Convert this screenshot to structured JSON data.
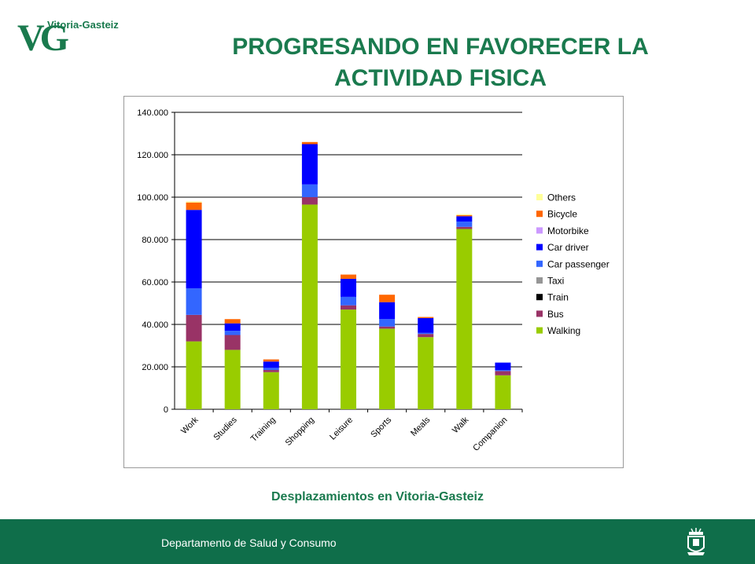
{
  "header": {
    "logo_text": "Vitoria-Gasteiz",
    "logo_monogram": "VG",
    "title_line1": "PROGRESANDO EN FAVORECER LA",
    "title_line2": "ACTIVIDAD FISICA"
  },
  "caption": "Desplazamientos en Vitoria-Gasteiz",
  "footer": {
    "department": "Departamento de Salud y Consumo",
    "crest_icon": "city-crest-icon"
  },
  "colors": {
    "brand_green": "#1a7a4e",
    "footer_green": "#0f6e4a"
  },
  "chart_data": {
    "type": "bar",
    "stacked": true,
    "categories": [
      "Work",
      "Studies",
      "Training",
      "Shopping",
      "Leisure",
      "Sports",
      "Meals",
      "Walk",
      "Companion"
    ],
    "ylim": [
      0,
      140000
    ],
    "yticks": [
      0,
      20000,
      40000,
      60000,
      80000,
      100000,
      120000,
      140000
    ],
    "ytick_labels": [
      "0",
      "20.000",
      "40.000",
      "60.000",
      "80.000",
      "100.000",
      "120.000",
      "140.000"
    ],
    "grid": true,
    "legend_position": "right",
    "series": [
      {
        "name": "Walking",
        "color": "#99cc00",
        "values": [
          32000,
          28000,
          17500,
          96500,
          47000,
          38000,
          34000,
          85000,
          16000
        ]
      },
      {
        "name": "Bus",
        "color": "#993366",
        "values": [
          12500,
          7000,
          1000,
          3500,
          2000,
          1000,
          1500,
          1000,
          2000
        ]
      },
      {
        "name": "Train",
        "color": "#000000",
        "values": [
          0,
          0,
          0,
          0,
          0,
          0,
          0,
          0,
          0
        ]
      },
      {
        "name": "Taxi",
        "color": "#969696",
        "values": [
          0,
          0,
          0,
          0,
          0,
          0,
          0,
          0,
          0
        ]
      },
      {
        "name": "Car passenger",
        "color": "#3366ff",
        "values": [
          12500,
          2000,
          1000,
          6000,
          4000,
          3500,
          500,
          2500,
          500
        ]
      },
      {
        "name": "Car driver",
        "color": "#0000ff",
        "values": [
          37000,
          3500,
          3000,
          19000,
          8500,
          8000,
          7000,
          2500,
          3500
        ]
      },
      {
        "name": "Motorbike",
        "color": "#cc99ff",
        "values": [
          0,
          0,
          0,
          0,
          0,
          0,
          0,
          0,
          0
        ]
      },
      {
        "name": "Bicycle",
        "color": "#ff6600",
        "values": [
          3500,
          2000,
          1000,
          1000,
          2000,
          3500,
          500,
          500,
          0
        ]
      },
      {
        "name": "Others",
        "color": "#ffff99",
        "values": [
          500,
          0,
          0,
          0,
          0,
          0,
          0,
          500,
          0
        ]
      }
    ]
  }
}
